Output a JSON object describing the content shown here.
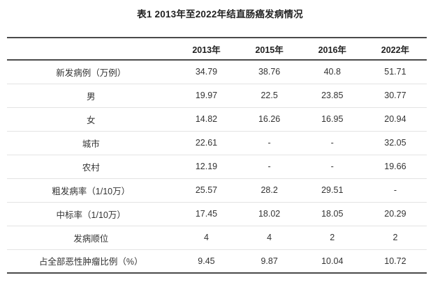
{
  "title": "表1 2013年至2022年结直肠癌发病情况",
  "table": {
    "columns": [
      "",
      "2013年",
      "2015年",
      "2016年",
      "2022年"
    ],
    "rows": [
      {
        "label": "新发病例（万例）",
        "values": [
          "34.79",
          "38.76",
          "40.8",
          "51.71"
        ]
      },
      {
        "label": "男",
        "values": [
          "19.97",
          "22.5",
          "23.85",
          "30.77"
        ]
      },
      {
        "label": "女",
        "values": [
          "14.82",
          "16.26",
          "16.95",
          "20.94"
        ]
      },
      {
        "label": "城市",
        "values": [
          "22.61",
          "-",
          "-",
          "32.05"
        ]
      },
      {
        "label": "农村",
        "values": [
          "12.19",
          "-",
          "-",
          "19.66"
        ]
      },
      {
        "label": "粗发病率（1/10万）",
        "values": [
          "25.57",
          "28.2",
          "29.51",
          "-"
        ]
      },
      {
        "label": "中标率（1/10万）",
        "values": [
          "17.45",
          "18.02",
          "18.05",
          "20.29"
        ]
      },
      {
        "label": "发病顺位",
        "values": [
          "4",
          "4",
          "2",
          "2"
        ]
      },
      {
        "label": "占全部恶性肿瘤比例（%）",
        "values": [
          "9.45",
          "9.87",
          "10.04",
          "10.72"
        ]
      }
    ]
  },
  "colors": {
    "heavy_rule": "#4a4a4a",
    "light_rule": "#e3e3e3",
    "text": "#333333",
    "header_text": "#222222",
    "background": "#ffffff"
  }
}
